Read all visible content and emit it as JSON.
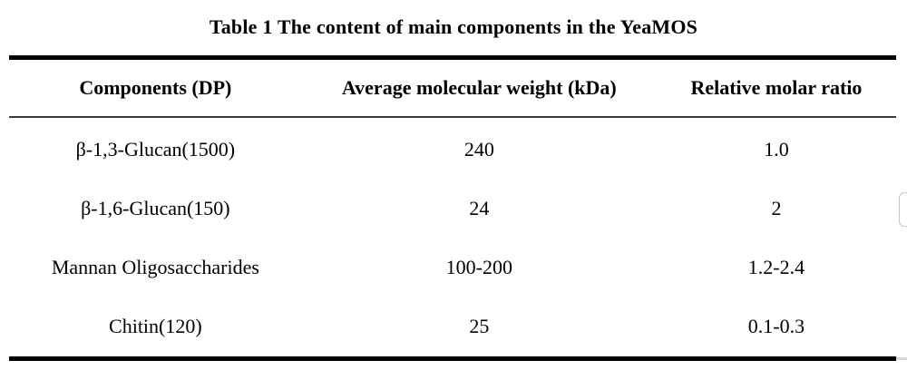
{
  "page": {
    "title": "Table 1 The content of main components in the YeaMOS"
  },
  "table": {
    "columns": [
      "Components (DP)",
      "Average molecular weight (kDa)",
      "Relative molar ratio"
    ],
    "rows": [
      {
        "component": "β-1,3-Glucan(1500)",
        "weight": "240",
        "ratio": "1.0"
      },
      {
        "component": "β-1,6-Glucan(150)",
        "weight": "24",
        "ratio": "2"
      },
      {
        "component": "Mannan Oligosaccharides",
        "weight": "100-200",
        "ratio": "1.2-2.4"
      },
      {
        "component": "Chitin(120)",
        "weight": "25",
        "ratio": "0.1-0.3"
      }
    ]
  },
  "colors": {
    "text": "#000000",
    "thick_rule": "#000000",
    "thin_rule": "#3a3a3a",
    "background": "#ffffff",
    "edge_artifact": "#c5c5c5"
  }
}
